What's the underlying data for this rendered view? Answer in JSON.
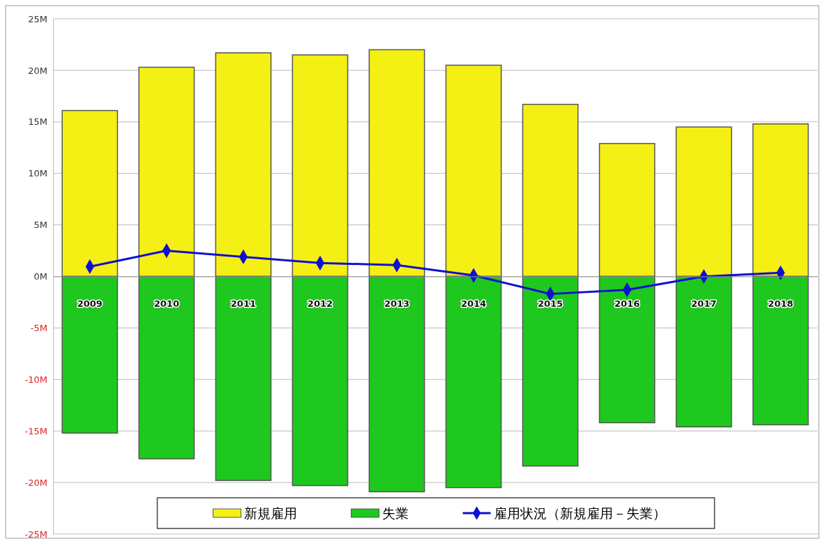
{
  "chart_data": {
    "type": "bar",
    "stacked": true,
    "categories": [
      "2009",
      "2010",
      "2011",
      "2012",
      "2013",
      "2014",
      "2015",
      "2016",
      "2017",
      "2018"
    ],
    "series": [
      {
        "name": "新規雇用",
        "color": "#f5f014",
        "values": [
          16.1,
          20.3,
          21.7,
          21.5,
          22.0,
          20.5,
          16.7,
          12.9,
          14.5,
          14.8
        ]
      },
      {
        "name": "失業",
        "color": "#1ec81e",
        "values": [
          -15.2,
          -17.7,
          -19.8,
          -20.3,
          -20.9,
          -20.5,
          -18.4,
          -14.2,
          -14.6,
          -14.4
        ]
      },
      {
        "name": "雇用状況（新規雇用－失業）",
        "type": "line",
        "color": "#1010d0",
        "marker": "diamond",
        "values": [
          0.95,
          2.5,
          1.9,
          1.3,
          1.1,
          0.1,
          -1.7,
          -1.3,
          0,
          0.35
        ]
      }
    ],
    "ylim": [
      -25,
      25
    ],
    "yticks": [
      {
        "value": -25,
        "label": "-25M"
      },
      {
        "value": -20,
        "label": "-20M"
      },
      {
        "value": -15,
        "label": "-15M"
      },
      {
        "value": -10,
        "label": "-10M"
      },
      {
        "value": -5,
        "label": "-5M"
      },
      {
        "value": 0,
        "label": "0M"
      },
      {
        "value": 5,
        "label": "5M"
      },
      {
        "value": 10,
        "label": "10M"
      },
      {
        "value": 15,
        "label": "15M"
      },
      {
        "value": 20,
        "label": "20M"
      },
      {
        "value": 25,
        "label": "25M"
      }
    ],
    "grid": "y",
    "legend": "bottom"
  }
}
